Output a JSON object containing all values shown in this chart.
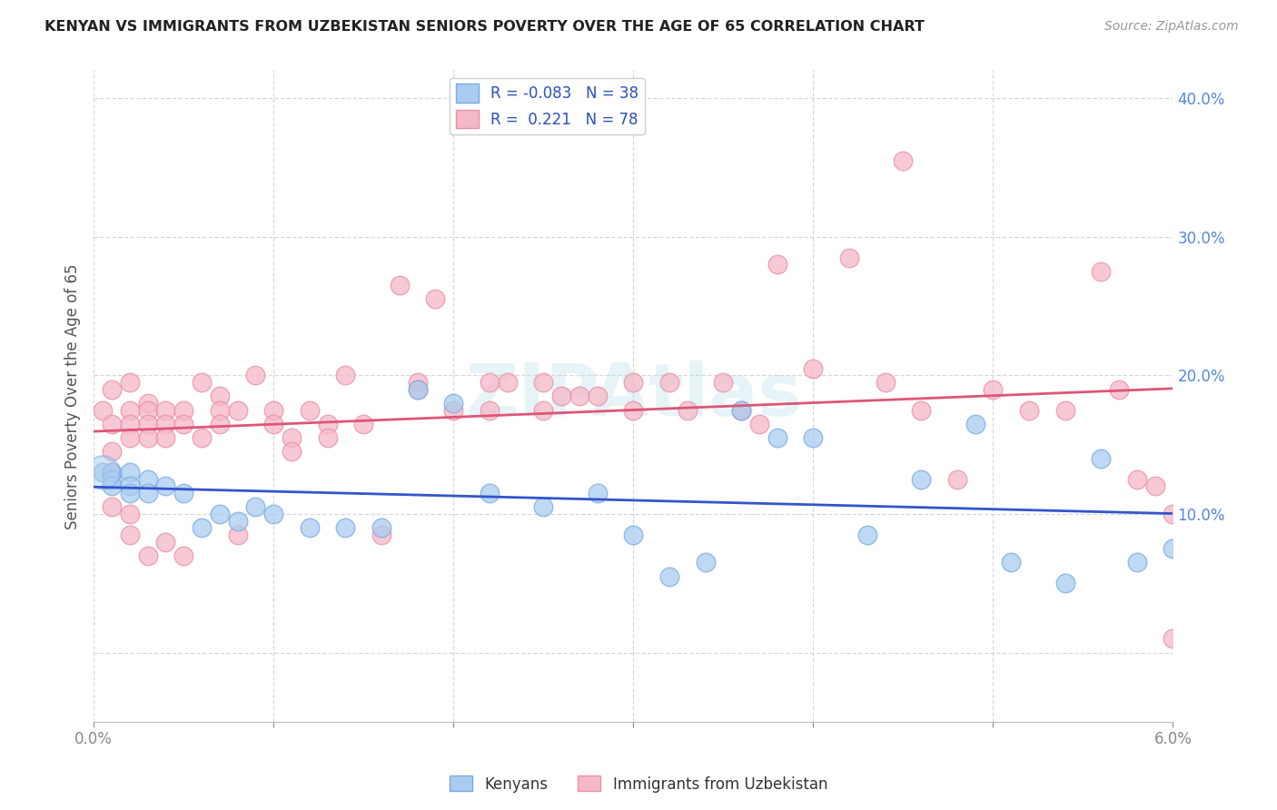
{
  "title": "KENYAN VS IMMIGRANTS FROM UZBEKISTAN SENIORS POVERTY OVER THE AGE OF 65 CORRELATION CHART",
  "source": "Source: ZipAtlas.com",
  "ylabel": "Seniors Poverty Over the Age of 65",
  "background_color": "#ffffff",
  "grid_color": "#d8d8d8",
  "kenyan_color": "#aaccf0",
  "uzbek_color": "#f5b8c8",
  "kenyan_edge_color": "#7aabdf",
  "uzbek_edge_color": "#e890a8",
  "kenyan_line_color": "#3355cc",
  "uzbek_line_color": "#dd5577",
  "legend_kenyan_label": "Kenyans",
  "legend_uzbek_label": "Immigrants from Uzbekistan",
  "R_kenyan": -0.083,
  "N_kenyan": 38,
  "R_uzbek": 0.221,
  "N_uzbek": 78,
  "xlim": [
    0.0,
    0.06
  ],
  "ylim": [
    -0.05,
    0.42
  ],
  "yticks": [
    0.0,
    0.1,
    0.2,
    0.3,
    0.4
  ],
  "ytick_labels": [
    "",
    "10.0%",
    "20.0%",
    "30.0%",
    "40.0%"
  ],
  "kenyan_x": [
    0.0005,
    0.001,
    0.001,
    0.001,
    0.002,
    0.002,
    0.002,
    0.003,
    0.003,
    0.004,
    0.005,
    0.006,
    0.007,
    0.008,
    0.009,
    0.01,
    0.012,
    0.014,
    0.016,
    0.018,
    0.02,
    0.022,
    0.025,
    0.028,
    0.03,
    0.032,
    0.034,
    0.036,
    0.038,
    0.04,
    0.043,
    0.046,
    0.049,
    0.051,
    0.054,
    0.056,
    0.058,
    0.06
  ],
  "kenyan_y": [
    0.13,
    0.13,
    0.125,
    0.12,
    0.13,
    0.12,
    0.115,
    0.125,
    0.115,
    0.12,
    0.115,
    0.09,
    0.1,
    0.095,
    0.105,
    0.1,
    0.09,
    0.09,
    0.09,
    0.19,
    0.18,
    0.115,
    0.105,
    0.115,
    0.085,
    0.055,
    0.065,
    0.175,
    0.155,
    0.155,
    0.085,
    0.125,
    0.165,
    0.065,
    0.05,
    0.14,
    0.065,
    0.075
  ],
  "uzbek_x": [
    0.0005,
    0.001,
    0.001,
    0.001,
    0.001,
    0.001,
    0.002,
    0.002,
    0.002,
    0.002,
    0.002,
    0.002,
    0.003,
    0.003,
    0.003,
    0.003,
    0.003,
    0.004,
    0.004,
    0.004,
    0.004,
    0.005,
    0.005,
    0.005,
    0.006,
    0.006,
    0.007,
    0.007,
    0.007,
    0.008,
    0.008,
    0.009,
    0.01,
    0.01,
    0.011,
    0.011,
    0.012,
    0.013,
    0.013,
    0.014,
    0.015,
    0.016,
    0.017,
    0.018,
    0.018,
    0.019,
    0.02,
    0.022,
    0.022,
    0.023,
    0.025,
    0.025,
    0.026,
    0.027,
    0.028,
    0.03,
    0.03,
    0.032,
    0.033,
    0.035,
    0.036,
    0.037,
    0.038,
    0.04,
    0.042,
    0.044,
    0.045,
    0.046,
    0.048,
    0.05,
    0.052,
    0.054,
    0.056,
    0.057,
    0.058,
    0.059,
    0.06,
    0.06
  ],
  "uzbek_y": [
    0.175,
    0.19,
    0.165,
    0.145,
    0.13,
    0.105,
    0.195,
    0.175,
    0.165,
    0.155,
    0.1,
    0.085,
    0.18,
    0.175,
    0.165,
    0.155,
    0.07,
    0.175,
    0.165,
    0.155,
    0.08,
    0.175,
    0.165,
    0.07,
    0.195,
    0.155,
    0.185,
    0.175,
    0.165,
    0.175,
    0.085,
    0.2,
    0.175,
    0.165,
    0.155,
    0.145,
    0.175,
    0.165,
    0.155,
    0.2,
    0.165,
    0.085,
    0.265,
    0.195,
    0.19,
    0.255,
    0.175,
    0.195,
    0.175,
    0.195,
    0.195,
    0.175,
    0.185,
    0.185,
    0.185,
    0.195,
    0.175,
    0.195,
    0.175,
    0.195,
    0.175,
    0.165,
    0.28,
    0.205,
    0.285,
    0.195,
    0.355,
    0.175,
    0.125,
    0.19,
    0.175,
    0.175,
    0.275,
    0.19,
    0.125,
    0.12,
    0.1,
    0.01
  ]
}
